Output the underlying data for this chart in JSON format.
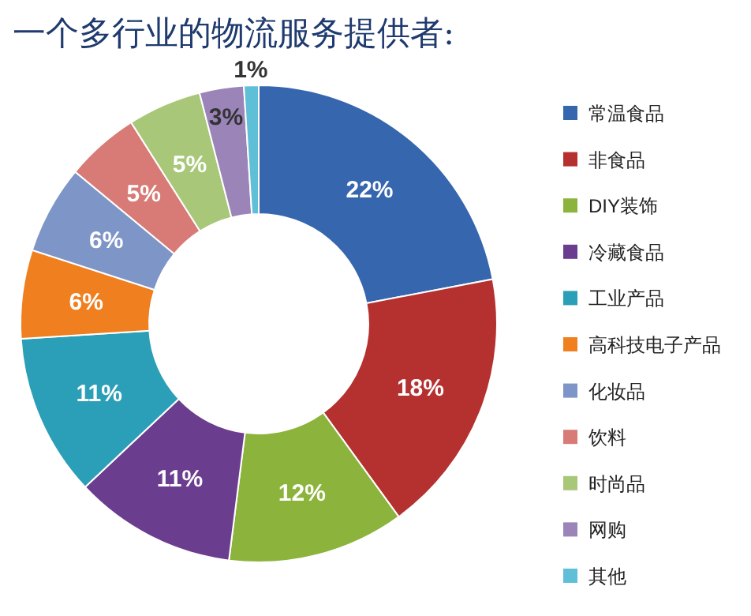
{
  "chart_data": {
    "type": "donut",
    "title": "一个多行业的物流服务提供者:",
    "categories": [
      "常温食品",
      "非食品",
      "DIY装饰",
      "冷藏食品",
      "工业产品",
      "高科技电子产品",
      "化妆品",
      "饮料",
      "时尚品",
      "网购",
      "其他"
    ],
    "values": [
      22,
      18,
      12,
      11,
      11,
      6,
      6,
      5,
      5,
      3,
      1
    ],
    "value_labels": [
      "22%",
      "18%",
      "12%",
      "11%",
      "11%",
      "6%",
      "6%",
      "5%",
      "5%",
      "3%",
      "1%"
    ],
    "colors": [
      "#3566ae",
      "#b5312f",
      "#8cb33b",
      "#6b3d8e",
      "#2b9fb7",
      "#ef7f1f",
      "#7d95c7",
      "#d87b77",
      "#a8c779",
      "#9a84b8",
      "#5fbfd6"
    ],
    "legend": "right"
  }
}
